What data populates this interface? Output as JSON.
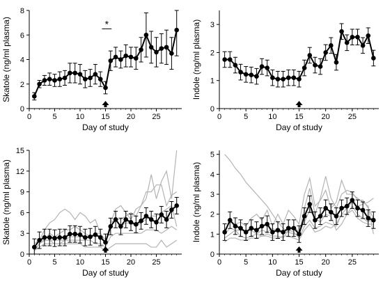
{
  "chart_data": [
    {
      "type": "line",
      "panel": "top-left",
      "xlabel": "Day of study",
      "ylabel": "Skatole (ng/ml plasma)",
      "xlim": [
        0,
        30
      ],
      "ylim": [
        0,
        8
      ],
      "xticks": [
        "0",
        "5",
        "10",
        "15",
        "20",
        "25"
      ],
      "yticks": [
        "0",
        "2",
        "4",
        "6",
        "8"
      ],
      "grid": false,
      "annotations": {
        "significance": "*",
        "arrow_day": 15
      },
      "series": [
        {
          "x": [
            1,
            2,
            3,
            4,
            5,
            6,
            7,
            8,
            9,
            10,
            11,
            12,
            13,
            14,
            15,
            16,
            17,
            18,
            19,
            20,
            21,
            22,
            23,
            24,
            25,
            26,
            27,
            28,
            29
          ],
          "values": [
            1.0,
            2.0,
            2.3,
            2.4,
            2.3,
            2.4,
            2.5,
            2.9,
            2.9,
            2.8,
            2.4,
            2.5,
            2.8,
            2.4,
            1.7,
            3.9,
            4.2,
            4.0,
            4.3,
            4.2,
            4.1,
            4.8,
            6.0,
            5.0,
            4.6,
            4.9,
            5.0,
            4.5,
            6.4
          ],
          "err": [
            0.3,
            0.3,
            0.4,
            0.5,
            0.5,
            0.6,
            0.6,
            0.8,
            0.8,
            0.8,
            0.7,
            0.7,
            0.8,
            0.6,
            0.5,
            0.8,
            0.8,
            0.7,
            0.9,
            0.8,
            0.9,
            1.0,
            1.8,
            1.3,
            1.2,
            1.2,
            1.4,
            1.3,
            2.1
          ]
        }
      ]
    },
    {
      "type": "line",
      "panel": "top-right",
      "xlabel": "Day of study",
      "ylabel": "Indole (ng/ml plasma)",
      "xlim": [
        0,
        30
      ],
      "ylim": [
        0,
        3.5
      ],
      "xticks": [
        "0",
        "5",
        "10",
        "15",
        "20",
        "25"
      ],
      "yticks": [
        "0",
        "1",
        "2",
        "3"
      ],
      "grid": false,
      "annotations": {
        "arrow_day": 15
      },
      "series": [
        {
          "x": [
            1,
            2,
            3,
            4,
            5,
            6,
            7,
            8,
            9,
            10,
            11,
            12,
            13,
            14,
            15,
            16,
            17,
            18,
            19,
            20,
            21,
            22,
            23,
            24,
            25,
            26,
            27,
            28,
            29
          ],
          "values": [
            1.75,
            1.75,
            1.55,
            1.3,
            1.22,
            1.2,
            1.15,
            1.5,
            1.45,
            1.1,
            1.05,
            1.05,
            1.1,
            1.1,
            1.05,
            1.45,
            1.9,
            1.55,
            1.5,
            2.0,
            2.25,
            1.65,
            2.75,
            2.35,
            2.55,
            2.55,
            2.25,
            2.6,
            1.8
          ]
        }
      ]
    },
    {
      "type": "line",
      "panel": "bottom-left",
      "xlabel": "Day of study",
      "ylabel": "Skatole (ng/ml plasma)",
      "xlim": [
        0,
        30
      ],
      "ylim": [
        0,
        15
      ],
      "xticks": [
        "0",
        "5",
        "10",
        "15",
        "20",
        "25"
      ],
      "yticks": [
        "0",
        "3",
        "6",
        "9",
        "12",
        "15"
      ],
      "grid": false,
      "annotations": {
        "arrow_day": 15
      },
      "series": [
        {
          "x": [
            1,
            2,
            3,
            4,
            5,
            6,
            7,
            8,
            9,
            10,
            11,
            12,
            13,
            14,
            15,
            16,
            17,
            18,
            19,
            20,
            21,
            22,
            23,
            24,
            25,
            26,
            27,
            28,
            29
          ],
          "values": [
            1.0,
            2.0,
            2.4,
            2.4,
            2.3,
            2.4,
            2.4,
            2.9,
            2.9,
            2.8,
            2.4,
            2.5,
            2.8,
            2.4,
            1.7,
            4.0,
            5.0,
            4.0,
            5.0,
            4.6,
            4.3,
            4.8,
            5.5,
            5.0,
            4.6,
            5.7,
            5.0,
            6.4,
            7.0
          ]
        }
      ],
      "individual_lines": [
        [
          1.5,
          2.0,
          3.5,
          4.5,
          5.0,
          6.0,
          6.5,
          6.0,
          5.0,
          6.0,
          5.5,
          4.5,
          5.0,
          3.0,
          1.5,
          4.5,
          6.5,
          7.0,
          6.0,
          5.0,
          6.5,
          7.0,
          8.0,
          11.5,
          8.0,
          10.5,
          12.0,
          8.0,
          15.0
        ],
        [
          1.0,
          2.0,
          2.0,
          3.0,
          2.5,
          3.0,
          3.5,
          3.5,
          4.0,
          3.5,
          3.0,
          2.5,
          3.0,
          3.0,
          2.0,
          4.0,
          5.0,
          5.0,
          5.5,
          6.0,
          5.5,
          7.0,
          9.0,
          9.0,
          10.0,
          10.0,
          7.0,
          8.5,
          9.0
        ],
        [
          0.5,
          1.5,
          2.0,
          2.0,
          1.5,
          1.5,
          2.0,
          2.5,
          2.5,
          2.5,
          2.5,
          2.5,
          3.0,
          2.5,
          1.5,
          4.5,
          5.0,
          4.0,
          4.5,
          4.5,
          4.0,
          4.5,
          5.0,
          5.5,
          5.5,
          6.0,
          6.5,
          7.0,
          4.0
        ],
        [
          0.5,
          1.5,
          2.0,
          2.0,
          2.0,
          2.0,
          2.0,
          2.0,
          2.0,
          2.0,
          2.0,
          2.0,
          1.5,
          1.5,
          1.0,
          2.5,
          3.0,
          3.0,
          3.0,
          3.0,
          3.0,
          3.0,
          3.5,
          3.5,
          3.5,
          3.0,
          3.5,
          4.0,
          3.5
        ],
        [
          0.5,
          1.0,
          1.5,
          1.5,
          1.5,
          1.5,
          1.5,
          1.5,
          1.5,
          1.5,
          1.0,
          1.0,
          1.0,
          1.0,
          0.5,
          1.0,
          1.5,
          1.5,
          1.5,
          1.5,
          1.5,
          1.5,
          1.5,
          1.0,
          1.0,
          2.0,
          1.0,
          1.5,
          2.0
        ]
      ]
    },
    {
      "type": "line",
      "panel": "bottom-right",
      "xlabel": "Day of study",
      "ylabel": "Indole (ng/ml plasma)",
      "xlim": [
        0,
        30
      ],
      "ylim": [
        0,
        5.2
      ],
      "xticks": [
        "0",
        "5",
        "10",
        "15",
        "20",
        "25"
      ],
      "yticks": [
        "0",
        "1",
        "2",
        "3",
        "4",
        "5"
      ],
      "grid": false,
      "annotations": {
        "arrow_day": 15
      },
      "series": [
        {
          "x": [
            1,
            2,
            3,
            4,
            5,
            6,
            7,
            8,
            9,
            10,
            11,
            12,
            13,
            14,
            15,
            16,
            17,
            18,
            19,
            20,
            21,
            22,
            23,
            24,
            25,
            26,
            27,
            28,
            29
          ],
          "values": [
            1.1,
            1.7,
            1.4,
            1.3,
            1.1,
            1.3,
            1.2,
            1.4,
            1.5,
            1.1,
            1.2,
            1.1,
            1.3,
            1.3,
            1.0,
            1.9,
            2.5,
            1.7,
            1.9,
            2.3,
            2.1,
            1.9,
            2.3,
            2.4,
            2.7,
            2.3,
            2.2,
            1.8,
            1.7
          ]
        }
      ],
      "individual_lines": [
        [
          5.0,
          4.7,
          4.3,
          4.0,
          3.6,
          3.3,
          3.0,
          2.7,
          2.4,
          2.0,
          1.6,
          1.3,
          1.1,
          1.0,
          1.0,
          2.3,
          3.3,
          2.0,
          2.8,
          3.9,
          2.8,
          2.3,
          3.0,
          3.2,
          3.1,
          2.7,
          2.7,
          2.3,
          1.8
        ],
        [
          1.2,
          1.6,
          1.5,
          1.6,
          1.4,
          1.8,
          2.0,
          1.7,
          2.2,
          1.4,
          2.0,
          1.5,
          2.2,
          1.9,
          1.5,
          3.0,
          3.8,
          2.4,
          2.7,
          3.2,
          2.3,
          2.6,
          3.7,
          3.0,
          3.0,
          2.8,
          2.6,
          2.4,
          1.0
        ],
        [
          1.0,
          1.3,
          1.2,
          1.2,
          1.1,
          1.2,
          1.0,
          1.2,
          1.1,
          1.3,
          1.1,
          1.1,
          1.1,
          1.4,
          1.1,
          1.6,
          2.2,
          1.8,
          1.6,
          2.0,
          1.9,
          1.2,
          1.5,
          2.0,
          2.4,
          2.0,
          1.8,
          1.6,
          1.9
        ],
        [
          0.8,
          1.0,
          1.2,
          0.9,
          0.8,
          0.9,
          1.0,
          0.9,
          1.0,
          0.9,
          0.9,
          0.8,
          1.2,
          1.1,
          0.8,
          1.4,
          1.7,
          1.3,
          1.4,
          1.6,
          1.5,
          1.4,
          2.0,
          2.0,
          2.2,
          1.8,
          1.6,
          1.5,
          1.5
        ],
        [
          0.6,
          0.8,
          0.8,
          0.7,
          0.7,
          0.8,
          0.8,
          0.9,
          0.9,
          0.8,
          0.8,
          0.9,
          0.9,
          0.8,
          0.7,
          1.2,
          1.5,
          1.1,
          1.2,
          1.4,
          1.3,
          1.5,
          2.0,
          2.3,
          2.6,
          2.4,
          2.5,
          2.6,
          2.8
        ]
      ]
    }
  ]
}
